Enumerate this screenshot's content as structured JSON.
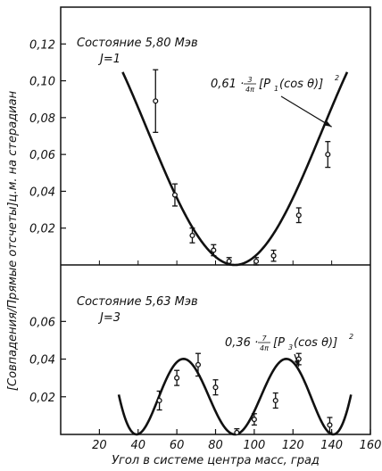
{
  "chart_data": [
    {
      "type": "scatter",
      "title": "Состояние 5,80 Мэв",
      "subtitle": "J=1",
      "ylim": [
        0,
        0.14
      ],
      "yticks": [
        0.02,
        0.04,
        0.06,
        0.08,
        0.1,
        0.12
      ],
      "ytick_labels": [
        "0,02",
        "0,04",
        "0,06",
        "0,08",
        "0,10",
        "0,12"
      ],
      "fit_label": {
        "coef": "0,61",
        "frac_num": "3",
        "frac_den": "4π",
        "poly": "[P",
        "poly_sub": "1",
        "poly_arg": "(cos θ)]",
        "power": "2"
      },
      "fit": {
        "coef": 0.61,
        "l": 1,
        "x_range": [
          32,
          148
        ]
      },
      "points": [
        {
          "x": 49,
          "y": 0.089,
          "err": 0.017
        },
        {
          "x": 59,
          "y": 0.038,
          "err": 0.006
        },
        {
          "x": 68,
          "y": 0.016,
          "err": 0.004
        },
        {
          "x": 79,
          "y": 0.008,
          "err": 0.003
        },
        {
          "x": 87,
          "y": 0.002,
          "err": 0.002
        },
        {
          "x": 101,
          "y": 0.002,
          "err": 0.002
        },
        {
          "x": 110,
          "y": 0.005,
          "err": 0.003
        },
        {
          "x": 123,
          "y": 0.027,
          "err": 0.004
        },
        {
          "x": 138,
          "y": 0.06,
          "err": 0.007
        }
      ]
    },
    {
      "type": "scatter",
      "title": "Состояние 5,63 Мэв",
      "subtitle": "J=3",
      "ylim": [
        0,
        0.09
      ],
      "yticks": [
        0.02,
        0.04,
        0.06
      ],
      "ytick_labels": [
        "0,02",
        "0,04",
        "0,06"
      ],
      "fit_label": {
        "coef": "0,36",
        "frac_num": "7",
        "frac_den": "4π",
        "poly": "[P",
        "poly_sub": "3",
        "poly_arg": "(cos θ)]",
        "power": "2"
      },
      "fit": {
        "coef": 0.36,
        "l": 3,
        "x_range": [
          30,
          150
        ]
      },
      "points": [
        {
          "x": 51,
          "y": 0.018,
          "err": 0.005
        },
        {
          "x": 60,
          "y": 0.03,
          "err": 0.004
        },
        {
          "x": 71,
          "y": 0.037,
          "err": 0.006
        },
        {
          "x": 80,
          "y": 0.025,
          "err": 0.004
        },
        {
          "x": 91,
          "y": 0.001,
          "err": 0.002
        },
        {
          "x": 100,
          "y": 0.008,
          "err": 0.003
        },
        {
          "x": 111,
          "y": 0.018,
          "err": 0.004
        },
        {
          "x": 123,
          "y": 0.04,
          "err": 0.003
        },
        {
          "x": 139,
          "y": 0.005,
          "err": 0.004
        }
      ]
    }
  ],
  "x_axis": {
    "xlim": [
      0,
      160
    ],
    "ticks": [
      20,
      40,
      60,
      80,
      100,
      120,
      140,
      160
    ],
    "tick_labels": [
      "20",
      "40",
      "60",
      "80",
      "100",
      "120",
      "140",
      "160"
    ],
    "label": "Угол в системе центра масс, град"
  },
  "y_axis_label": "[Совпадения/Прямые отсчеты]ц.м. на стерадиан"
}
